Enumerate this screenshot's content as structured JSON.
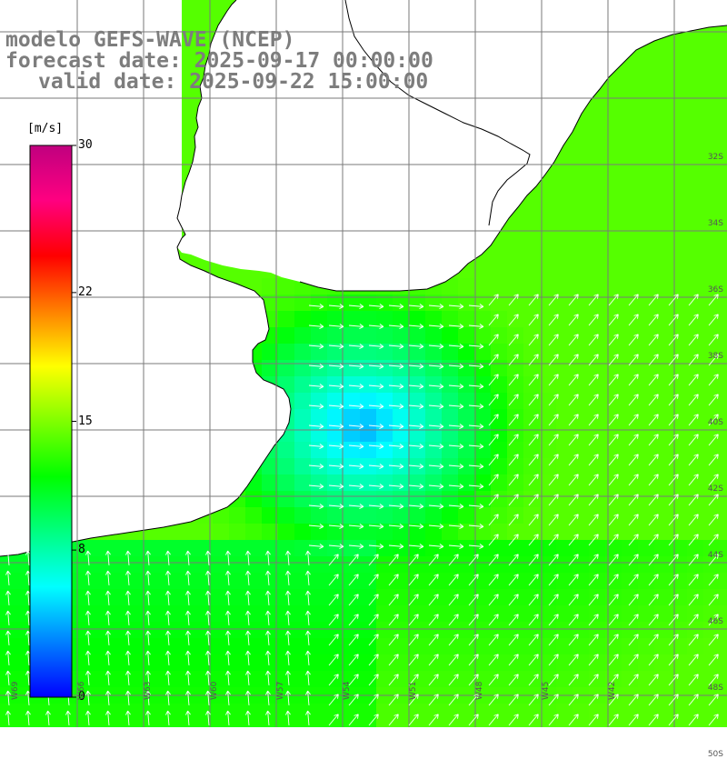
{
  "title": {
    "line1": "modelo GEFS-WAVE (NCEP)",
    "line2": "forecast date: 2025-09-17 00:00:00",
    "line3": "valid date: 2025-09-22 15:00:00"
  },
  "colorbar": {
    "unit": "[m/s]",
    "ticks": [
      {
        "label": "30",
        "value": 30
      },
      {
        "label": "22",
        "value": 22
      },
      {
        "label": "15",
        "value": 15
      },
      {
        "label": "8",
        "value": 8
      },
      {
        "label": "0",
        "value": 0
      }
    ],
    "colors": [
      "#0000ff",
      "#0080ff",
      "#00ffff",
      "#00ff80",
      "#00ff00",
      "#80ff00",
      "#ffff00",
      "#ff8000",
      "#ff0000",
      "#ff0080",
      "#c0007f"
    ]
  },
  "map": {
    "land_color": "#ffffff",
    "grid_color": "#7a7a7a",
    "coast_color": "#000000",
    "arrow_color": "#ffffff",
    "lon_labels": [
      "W69",
      "W66",
      "W63",
      "W60",
      "W57",
      "W54",
      "W51",
      "W48",
      "W45",
      "W42"
    ],
    "lat_labels": [
      "32S",
      "34S",
      "36S",
      "38S",
      "40S",
      "42S",
      "44S",
      "46S",
      "48S",
      "50S"
    ]
  }
}
